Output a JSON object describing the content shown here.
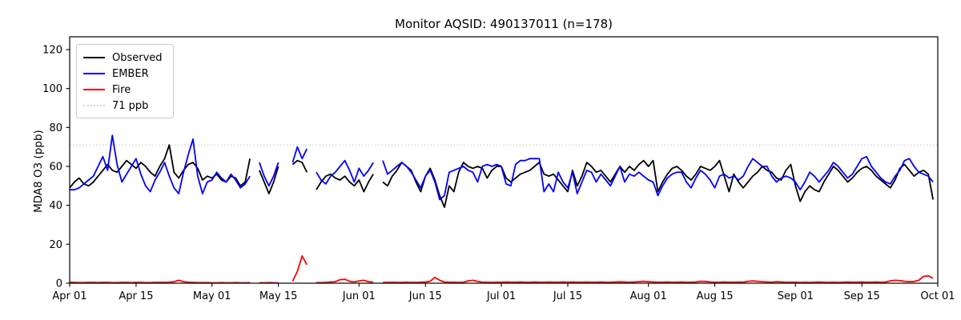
{
  "chart_data": {
    "type": "line",
    "title": "Monitor AQSID: 490137011 (n=178)",
    "xlabel": "",
    "ylabel": "MDA8 O3 (ppb)",
    "ylim": [
      0,
      126
    ],
    "grid": false,
    "x_start": "Apr 01",
    "x_end": "Oct 01",
    "x_total_days": 183,
    "n_points": 178,
    "yticks": [
      0,
      20,
      40,
      60,
      80,
      100,
      120
    ],
    "xticks": [
      {
        "day": 0,
        "label": "Apr 01"
      },
      {
        "day": 14,
        "label": "Apr 15"
      },
      {
        "day": 30,
        "label": "May 01"
      },
      {
        "day": 44,
        "label": "May 15"
      },
      {
        "day": 61,
        "label": "Jun 01"
      },
      {
        "day": 75,
        "label": "Jun 15"
      },
      {
        "day": 91,
        "label": "Jul 01"
      },
      {
        "day": 105,
        "label": "Jul 15"
      },
      {
        "day": 122,
        "label": "Aug 01"
      },
      {
        "day": 136,
        "label": "Aug 15"
      },
      {
        "day": 153,
        "label": "Sep 01"
      },
      {
        "day": 167,
        "label": "Sep 15"
      },
      {
        "day": 183,
        "label": "Oct 01"
      }
    ],
    "threshold": {
      "value": 71,
      "label": "71 ppb",
      "color": "#d3d3d3",
      "style": "dotted"
    },
    "missing_dates": [
      "May 10",
      "May 16",
      "May 17",
      "May 22",
      "Jun 05"
    ],
    "legend": {
      "position": "upper left",
      "entries": [
        {
          "label": "Observed",
          "color": "#000000",
          "style": "solid"
        },
        {
          "label": "EMBER",
          "color": "#0000ff",
          "style": "solid"
        },
        {
          "label": "Fire",
          "color": "#ff0000",
          "style": "solid"
        },
        {
          "label": "71 ppb",
          "color": "#d3d3d3",
          "style": "dotted"
        }
      ]
    },
    "series": [
      {
        "name": "Observed",
        "color": "#000000",
        "values": [
          49,
          52,
          54,
          51,
          50,
          52,
          55,
          58,
          61,
          58,
          57,
          60,
          63,
          61,
          59,
          62,
          60,
          57,
          55,
          60,
          64,
          71,
          57,
          54,
          58,
          61,
          62,
          59,
          53,
          55,
          54,
          56,
          53,
          52,
          55,
          54,
          50,
          52,
          64,
          null,
          58,
          52,
          46,
          52,
          60,
          null,
          null,
          61,
          63,
          62,
          57,
          null,
          48,
          52,
          55,
          56,
          54,
          53,
          55,
          52,
          50,
          53,
          47,
          52,
          56,
          null,
          52,
          50,
          55,
          58,
          62,
          60,
          58,
          52,
          47,
          55,
          59,
          53,
          45,
          39,
          50,
          47,
          57,
          62,
          60,
          59,
          60,
          59,
          54,
          58,
          60,
          60,
          54,
          52,
          54,
          56,
          57,
          58,
          60,
          62,
          56,
          55,
          56,
          53,
          50,
          47,
          58,
          50,
          55,
          62,
          60,
          57,
          58,
          55,
          52,
          56,
          60,
          57,
          60,
          58,
          61,
          63,
          60,
          63,
          47,
          52,
          56,
          59,
          60,
          58,
          55,
          53,
          56,
          60,
          59,
          58,
          60,
          63,
          55,
          47,
          56,
          52,
          49,
          52,
          55,
          57,
          60,
          58,
          57,
          54,
          53,
          58,
          61,
          50,
          42,
          47,
          50,
          48,
          47,
          52,
          56,
          60,
          58,
          55,
          52,
          54,
          57,
          59,
          60,
          58,
          55,
          53,
          51,
          49,
          53,
          59,
          61,
          58,
          55,
          57,
          58,
          56,
          43
        ]
      },
      {
        "name": "EMBER",
        "color": "#0000ff",
        "values": [
          48,
          48,
          49,
          51,
          53,
          55,
          60,
          65,
          58,
          76,
          61,
          52,
          56,
          60,
          64,
          56,
          50,
          47,
          53,
          57,
          62,
          55,
          49,
          46,
          57,
          66,
          74,
          55,
          46,
          52,
          53,
          57,
          54,
          52,
          56,
          53,
          49,
          51,
          55,
          null,
          62,
          55,
          50,
          55,
          62,
          null,
          null,
          62,
          70,
          64,
          69,
          null,
          57,
          53,
          51,
          55,
          57,
          60,
          63,
          58,
          52,
          59,
          55,
          58,
          62,
          null,
          63,
          56,
          58,
          60,
          62,
          60,
          57,
          53,
          49,
          55,
          58,
          52,
          43,
          45,
          57,
          58,
          59,
          60,
          58,
          57,
          52,
          60,
          61,
          60,
          61,
          60,
          51,
          50,
          61,
          63,
          63,
          64,
          64,
          64,
          47,
          51,
          47,
          57,
          52,
          49,
          57,
          46,
          52,
          58,
          57,
          52,
          56,
          53,
          50,
          55,
          60,
          52,
          56,
          55,
          57,
          55,
          53,
          52,
          45,
          50,
          54,
          56,
          57,
          57,
          52,
          49,
          54,
          58,
          56,
          53,
          49,
          55,
          56,
          54,
          55,
          53,
          55,
          60,
          64,
          62,
          60,
          60,
          55,
          52,
          54,
          55,
          54,
          52,
          48,
          52,
          57,
          55,
          52,
          55,
          58,
          62,
          60,
          57,
          54,
          56,
          60,
          64,
          65,
          60,
          57,
          54,
          52,
          51,
          55,
          58,
          63,
          64,
          60,
          57,
          56,
          55,
          52
        ]
      },
      {
        "name": "Fire",
        "color": "#ff0000",
        "values": [
          0.4,
          0.4,
          0.3,
          0.3,
          0.4,
          0.4,
          0.3,
          0.4,
          0.4,
          0.3,
          0.3,
          0.4,
          0.4,
          0.3,
          0.4,
          0.4,
          0.3,
          0.3,
          0.4,
          0.4,
          0.4,
          0.5,
          0.8,
          1.5,
          0.8,
          0.5,
          0.4,
          0.3,
          0.3,
          0.3,
          0.2,
          0.2,
          0.3,
          0.2,
          0.2,
          0.3,
          0.2,
          0.2,
          0.3,
          null,
          0.2,
          0.2,
          0.3,
          0.2,
          0.2,
          null,
          null,
          1.0,
          6.0,
          14.0,
          9.5,
          null,
          0.3,
          0.3,
          0.4,
          0.6,
          0.8,
          1.8,
          2.0,
          1.0,
          0.6,
          1.2,
          1.5,
          0.8,
          0.5,
          null,
          0.4,
          0.4,
          0.5,
          0.4,
          0.4,
          0.5,
          0.4,
          0.4,
          0.5,
          0.6,
          1.0,
          3.0,
          1.5,
          0.6,
          0.5,
          0.5,
          0.4,
          0.5,
          1.2,
          1.5,
          0.9,
          0.5,
          0.5,
          0.4,
          0.5,
          0.5,
          0.6,
          0.5,
          0.5,
          0.6,
          0.5,
          0.5,
          0.6,
          0.5,
          0.5,
          0.6,
          0.5,
          0.5,
          0.6,
          0.5,
          0.6,
          0.5,
          0.5,
          0.6,
          0.5,
          0.5,
          0.6,
          0.5,
          0.5,
          0.6,
          0.7,
          0.6,
          0.5,
          0.6,
          0.8,
          1.0,
          0.8,
          0.6,
          0.5,
          0.5,
          0.6,
          0.5,
          0.5,
          0.6,
          0.5,
          0.5,
          0.6,
          1.0,
          0.9,
          0.6,
          0.5,
          0.5,
          0.6,
          0.5,
          0.5,
          0.6,
          0.5,
          1.0,
          1.2,
          1.0,
          0.8,
          0.6,
          0.5,
          0.8,
          0.6,
          0.5,
          0.5,
          0.5,
          0.4,
          0.5,
          0.4,
          0.5,
          0.6,
          0.5,
          0.4,
          0.5,
          0.4,
          0.5,
          0.6,
          0.5,
          0.5,
          0.6,
          0.5,
          0.5,
          0.6,
          0.5,
          0.6,
          1.2,
          1.5,
          1.3,
          1.0,
          0.8,
          0.9,
          1.5,
          3.5,
          3.8,
          2.5
        ]
      }
    ]
  }
}
